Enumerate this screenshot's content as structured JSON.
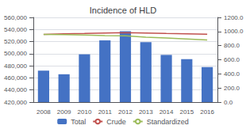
{
  "chart_data": {
    "type": "bar",
    "title": "Incidence of HLD",
    "categories": [
      "2008",
      "2009",
      "2010",
      "2011",
      "2012",
      "2013",
      "2014",
      "2015",
      "2016"
    ],
    "series": [
      {
        "name": "Total",
        "type": "bar",
        "color": "#4472C4",
        "values": [
          472000,
          466000,
          499000,
          522000,
          537000,
          519000,
          498000,
          491000,
          478000
        ]
      },
      {
        "name": "Crude",
        "type": "line",
        "axis": "y2",
        "color": "#C0504D",
        "values": [
          960,
          968,
          972,
          978,
          985,
          978,
          972,
          968,
          963
        ]
      },
      {
        "name": "Standardized",
        "type": "line",
        "axis": "y2",
        "color": "#9BBB59",
        "values": [
          958,
          955,
          950,
          942,
          938,
          920,
          908,
          895,
          880
        ]
      }
    ],
    "ylim": [
      420000,
      560000
    ],
    "yticks": [
      {
        "value": 420000,
        "label": "420,000"
      },
      {
        "value": 440000,
        "label": "440,000"
      },
      {
        "value": 460000,
        "label": "460,000"
      },
      {
        "value": 480000,
        "label": "480,000"
      },
      {
        "value": 500000,
        "label": "500,000"
      },
      {
        "value": 520000,
        "label": "520,000"
      },
      {
        "value": 540000,
        "label": "540,000"
      },
      {
        "value": 560000,
        "label": "560,000"
      }
    ],
    "y2lim": [
      0.0,
      1200.0
    ],
    "y2ticks": [
      {
        "value": 0,
        "label": "0.0"
      },
      {
        "value": 200,
        "label": "200.0"
      },
      {
        "value": 400,
        "label": "400.0"
      },
      {
        "value": 600,
        "label": "600.0"
      },
      {
        "value": 800,
        "label": "800.0"
      },
      {
        "value": 1000,
        "label": "1000.0"
      },
      {
        "value": 1200,
        "label": "1200.0"
      }
    ],
    "grid": true,
    "legend": "bottom"
  }
}
